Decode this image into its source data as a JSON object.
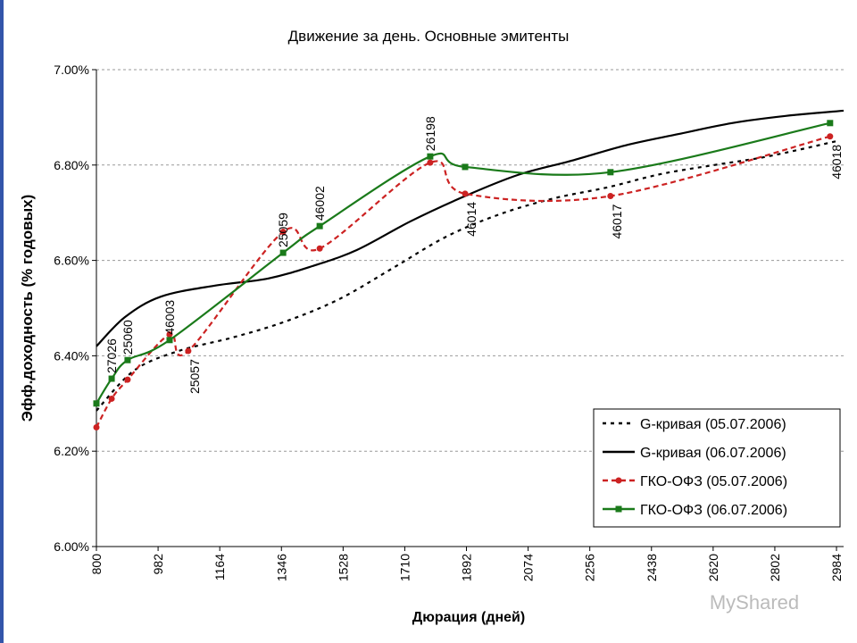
{
  "chart_data": {
    "type": "line",
    "title": "Движение за день. Основные эмитенты",
    "x_label": "Дюрация (дней)",
    "y_label": "Эфф.доходность (% годовых)",
    "xlim": [
      800,
      3005
    ],
    "xticks": [
      800,
      982,
      1164,
      1346,
      1528,
      1710,
      1892,
      2074,
      2256,
      2438,
      2620,
      2802,
      2984
    ],
    "ylim": [
      6.0,
      7.0
    ],
    "yticks": [
      {
        "value": 6.0,
        "label": "6.00%"
      },
      {
        "value": 6.2,
        "label": "6.20%"
      },
      {
        "value": 6.4,
        "label": "6.40%"
      },
      {
        "value": 6.6,
        "label": "6.60%"
      },
      {
        "value": 6.8,
        "label": "6.80%"
      },
      {
        "value": 7.0,
        "label": "7.00%"
      }
    ],
    "grid": true,
    "legend": "lower-right",
    "watermark": "MyShared",
    "series": [
      {
        "name": "G-кривая (05.07.2006)",
        "color": "#000000",
        "dash": "dotted",
        "marker": "none",
        "x": [
          800,
          911,
          1042,
          1200,
          1358,
          1517,
          1675,
          1833,
          1991,
          2149,
          2307,
          2465,
          2623,
          2781,
          2984
        ],
        "values": [
          6.285,
          6.369,
          6.41,
          6.438,
          6.472,
          6.519,
          6.584,
          6.65,
          6.697,
          6.73,
          6.753,
          6.781,
          6.8,
          6.818,
          6.85
        ]
      },
      {
        "name": "G-кривая (06.07.2006)",
        "color": "#000000",
        "dash": "solid",
        "marker": "none",
        "x": [
          800,
          884,
          990,
          1148,
          1306,
          1437,
          1569,
          1727,
          1885,
          2043,
          2202,
          2360,
          2518,
          2676,
          2834,
          3005
        ],
        "values": [
          6.42,
          6.481,
          6.524,
          6.547,
          6.562,
          6.588,
          6.622,
          6.682,
          6.734,
          6.779,
          6.809,
          6.841,
          6.865,
          6.888,
          6.903,
          6.914
        ]
      },
      {
        "name": "ГКО-ОФЗ (05.07.2006)",
        "color": "#cc2222",
        "dash": "dashed",
        "marker": "circle",
        "x": [
          800,
          845,
          892,
          1016,
          1071,
          1351,
          1459,
          1785,
          1888,
          2317,
          2965
        ],
        "values": [
          6.25,
          6.31,
          6.35,
          6.445,
          6.41,
          6.66,
          6.625,
          6.805,
          6.74,
          6.735,
          6.86
        ],
        "labels": [
          null,
          null,
          null,
          null,
          "25057",
          null,
          null,
          null,
          "46014",
          "46017",
          "46018"
        ]
      },
      {
        "name": "ГКО-ОФЗ (06.07.2006)",
        "color": "#1a7a1a",
        "dash": "solid",
        "marker": "square",
        "x": [
          800,
          845,
          892,
          1016,
          1351,
          1459,
          1785,
          1888,
          2317,
          2965
        ],
        "values": [
          6.3,
          6.352,
          6.391,
          6.433,
          6.616,
          6.672,
          6.818,
          6.796,
          6.785,
          6.888
        ],
        "labels": [
          null,
          "27026",
          "25060",
          "46003",
          "25059",
          "46002",
          "26198",
          null,
          null,
          null
        ]
      }
    ]
  }
}
